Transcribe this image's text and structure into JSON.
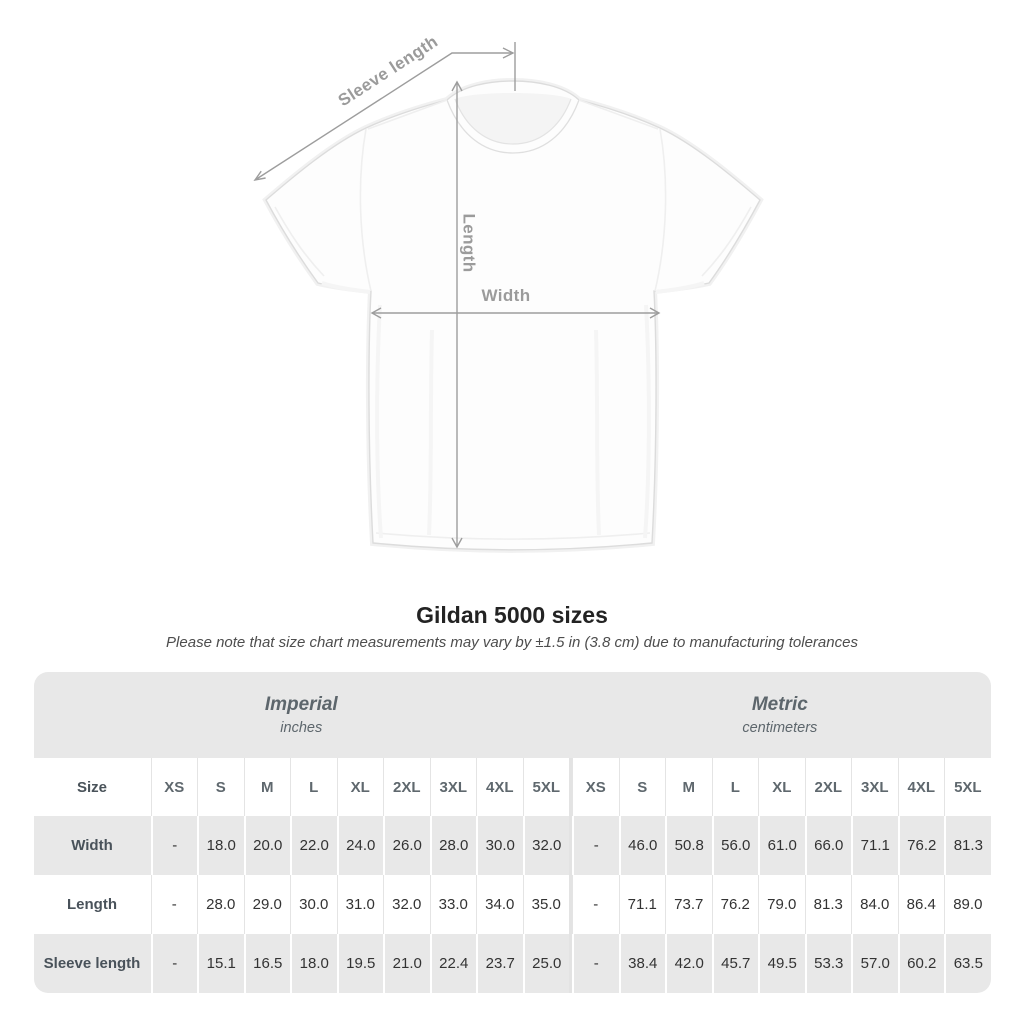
{
  "diagram": {
    "labels": {
      "sleeve_length": "Sleeve length",
      "length": "Length",
      "width": "Width"
    }
  },
  "title": "Gildan 5000 sizes",
  "subtitle": "Please note that size chart measurements may vary by ±1.5 in (3.8 cm) due to manufacturing tolerances",
  "table": {
    "size_header": "Size",
    "groups": [
      {
        "label": "Imperial",
        "unit": "inches"
      },
      {
        "label": "Metric",
        "unit": "centimeters"
      }
    ],
    "columns": [
      "XS",
      "S",
      "M",
      "L",
      "XL",
      "2XL",
      "3XL",
      "4XL",
      "5XL",
      "XS",
      "S",
      "M",
      "L",
      "XL",
      "2XL",
      "3XL",
      "4XL",
      "5XL"
    ],
    "rows": [
      {
        "label": "Width",
        "values": [
          "-",
          "18.0",
          "20.0",
          "22.0",
          "24.0",
          "26.0",
          "28.0",
          "30.0",
          "32.0",
          "-",
          "46.0",
          "50.8",
          "56.0",
          "61.0",
          "66.0",
          "71.1",
          "76.2",
          "81.3"
        ]
      },
      {
        "label": "Length",
        "values": [
          "-",
          "28.0",
          "29.0",
          "30.0",
          "31.0",
          "32.0",
          "33.0",
          "34.0",
          "35.0",
          "-",
          "71.1",
          "73.7",
          "76.2",
          "79.0",
          "81.3",
          "84.0",
          "86.4",
          "89.0"
        ]
      },
      {
        "label": "Sleeve length",
        "values": [
          "-",
          "15.1",
          "16.5",
          "18.0",
          "19.5",
          "21.0",
          "22.4",
          "23.7",
          "25.0",
          "-",
          "38.4",
          "42.0",
          "45.7",
          "49.5",
          "53.3",
          "57.0",
          "60.2",
          "63.5"
        ]
      }
    ]
  },
  "chart_data": {
    "type": "table",
    "title": "Gildan 5000 sizes",
    "columns": [
      "XS",
      "S",
      "M",
      "L",
      "XL",
      "2XL",
      "3XL",
      "4XL",
      "5XL"
    ],
    "series": [
      {
        "name": "Width (inches)",
        "values": [
          null,
          18.0,
          20.0,
          22.0,
          24.0,
          26.0,
          28.0,
          30.0,
          32.0
        ]
      },
      {
        "name": "Length (inches)",
        "values": [
          null,
          28.0,
          29.0,
          30.0,
          31.0,
          32.0,
          33.0,
          34.0,
          35.0
        ]
      },
      {
        "name": "Sleeve length (inches)",
        "values": [
          null,
          15.1,
          16.5,
          18.0,
          19.5,
          21.0,
          22.4,
          23.7,
          25.0
        ]
      },
      {
        "name": "Width (centimeters)",
        "values": [
          null,
          46.0,
          50.8,
          56.0,
          61.0,
          66.0,
          71.1,
          76.2,
          81.3
        ]
      },
      {
        "name": "Length (centimeters)",
        "values": [
          null,
          71.1,
          73.7,
          76.2,
          79.0,
          81.3,
          84.0,
          86.4,
          89.0
        ]
      },
      {
        "name": "Sleeve length (centimeters)",
        "values": [
          null,
          38.4,
          42.0,
          45.7,
          49.5,
          53.3,
          57.0,
          60.2,
          63.5
        ]
      }
    ]
  },
  "colors": {
    "table_band_gray": "#e8e8e8",
    "divider_gray": "#e4e4e4",
    "arrow_gray": "#9b9b9b",
    "text_dark": "#333333"
  }
}
